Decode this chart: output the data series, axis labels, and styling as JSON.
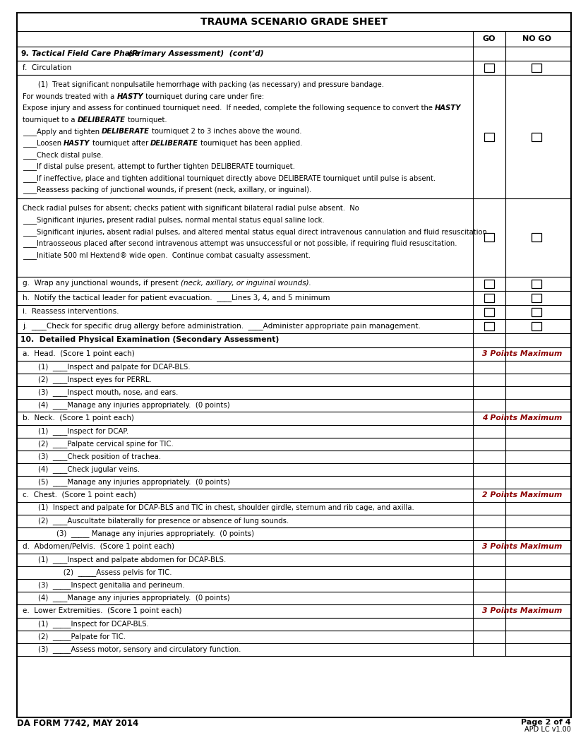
{
  "title": "TRAUMA SCENARIO GRADE SHEET",
  "footer_left": "DA FORM 7742, MAY 2014",
  "page_info1": "Page 2 of 4",
  "page_info2": "APD LC v1.00"
}
